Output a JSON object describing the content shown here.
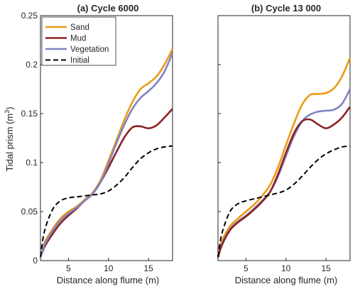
{
  "chart_data": [
    {
      "type": "line",
      "title": "(a) Cycle 6000",
      "xlabel": "Distance along flume (m)",
      "ylabel": "Tidal prism (m",
      "ylabel_sup": "3",
      "ylabel_close": ")",
      "xlim": [
        1.5,
        18
      ],
      "ylim": [
        0,
        0.25
      ],
      "xticks": [
        5,
        10,
        15
      ],
      "xtick_labels": [
        "5",
        "10",
        "15"
      ],
      "yticks": [
        0,
        0.05,
        0.1,
        0.15,
        0.2,
        0.25
      ],
      "ytick_labels": [
        "0",
        "0.05",
        "0.1",
        "0.15",
        "0.2",
        "0.25"
      ],
      "grid": false,
      "legend_position": "top-left",
      "x": [
        1.5,
        2,
        3,
        4,
        5,
        6,
        7,
        8,
        9,
        10,
        11,
        12,
        13,
        14,
        15,
        16,
        17,
        18
      ],
      "series": [
        {
          "name": "Sand",
          "color": "#ee9a13",
          "dashed": false,
          "width": 2.6,
          "values": [
            0.003,
            0.018,
            0.032,
            0.043,
            0.05,
            0.055,
            0.062,
            0.069,
            0.082,
            0.102,
            0.123,
            0.144,
            0.162,
            0.175,
            0.181,
            0.188,
            0.2,
            0.216
          ]
        },
        {
          "name": "Mud",
          "color": "#8b2323",
          "dashed": false,
          "width": 2.6,
          "values": [
            0.003,
            0.014,
            0.027,
            0.038,
            0.046,
            0.053,
            0.061,
            0.068,
            0.08,
            0.095,
            0.111,
            0.126,
            0.136,
            0.137,
            0.135,
            0.138,
            0.146,
            0.155
          ]
        },
        {
          "name": "Vegetation",
          "color": "#7f84c4",
          "dashed": false,
          "width": 2.6,
          "values": [
            0.003,
            0.016,
            0.03,
            0.041,
            0.048,
            0.054,
            0.061,
            0.068,
            0.08,
            0.099,
            0.12,
            0.139,
            0.155,
            0.166,
            0.173,
            0.181,
            0.193,
            0.212
          ]
        },
        {
          "name": "Initial",
          "color": "#000000",
          "dashed": true,
          "width": 2.0,
          "values": [
            0.004,
            0.03,
            0.052,
            0.061,
            0.064,
            0.065,
            0.066,
            0.067,
            0.068,
            0.071,
            0.077,
            0.085,
            0.095,
            0.104,
            0.11,
            0.114,
            0.116,
            0.117
          ]
        }
      ]
    },
    {
      "type": "line",
      "title": "(b) Cycle 13 000",
      "xlabel": "Distance along flume (m)",
      "xlim": [
        1.5,
        18
      ],
      "ylim": [
        0,
        0.25
      ],
      "xticks": [
        5,
        10,
        15
      ],
      "xtick_labels": [
        "5",
        "10",
        "15"
      ],
      "yticks": [
        0,
        0.05,
        0.1,
        0.15,
        0.2,
        0.25
      ],
      "grid": false,
      "x": [
        1.5,
        2,
        3,
        4,
        5,
        6,
        7,
        8,
        9,
        10,
        11,
        12,
        13,
        14,
        15,
        16,
        17,
        18
      ],
      "series": [
        {
          "color": "#ee9a13",
          "dashed": false,
          "width": 2.6,
          "values": [
            0.004,
            0.02,
            0.035,
            0.043,
            0.05,
            0.057,
            0.066,
            0.077,
            0.095,
            0.118,
            0.14,
            0.159,
            0.169,
            0.17,
            0.171,
            0.176,
            0.188,
            0.207
          ]
        },
        {
          "color": "#7f84c4",
          "dashed": false,
          "width": 2.6,
          "values": [
            0.003,
            0.017,
            0.032,
            0.04,
            0.046,
            0.053,
            0.061,
            0.07,
            0.086,
            0.107,
            0.127,
            0.142,
            0.149,
            0.152,
            0.153,
            0.154,
            0.16,
            0.175
          ]
        },
        {
          "color": "#8b2323",
          "dashed": false,
          "width": 2.6,
          "values": [
            0.003,
            0.016,
            0.031,
            0.039,
            0.045,
            0.052,
            0.06,
            0.07,
            0.088,
            0.11,
            0.13,
            0.142,
            0.144,
            0.139,
            0.135,
            0.139,
            0.146,
            0.157
          ]
        },
        {
          "color": "#000000",
          "dashed": true,
          "width": 2.0,
          "values": [
            0.004,
            0.028,
            0.05,
            0.058,
            0.061,
            0.063,
            0.065,
            0.067,
            0.069,
            0.072,
            0.078,
            0.086,
            0.095,
            0.103,
            0.109,
            0.113,
            0.116,
            0.117
          ]
        }
      ]
    }
  ]
}
